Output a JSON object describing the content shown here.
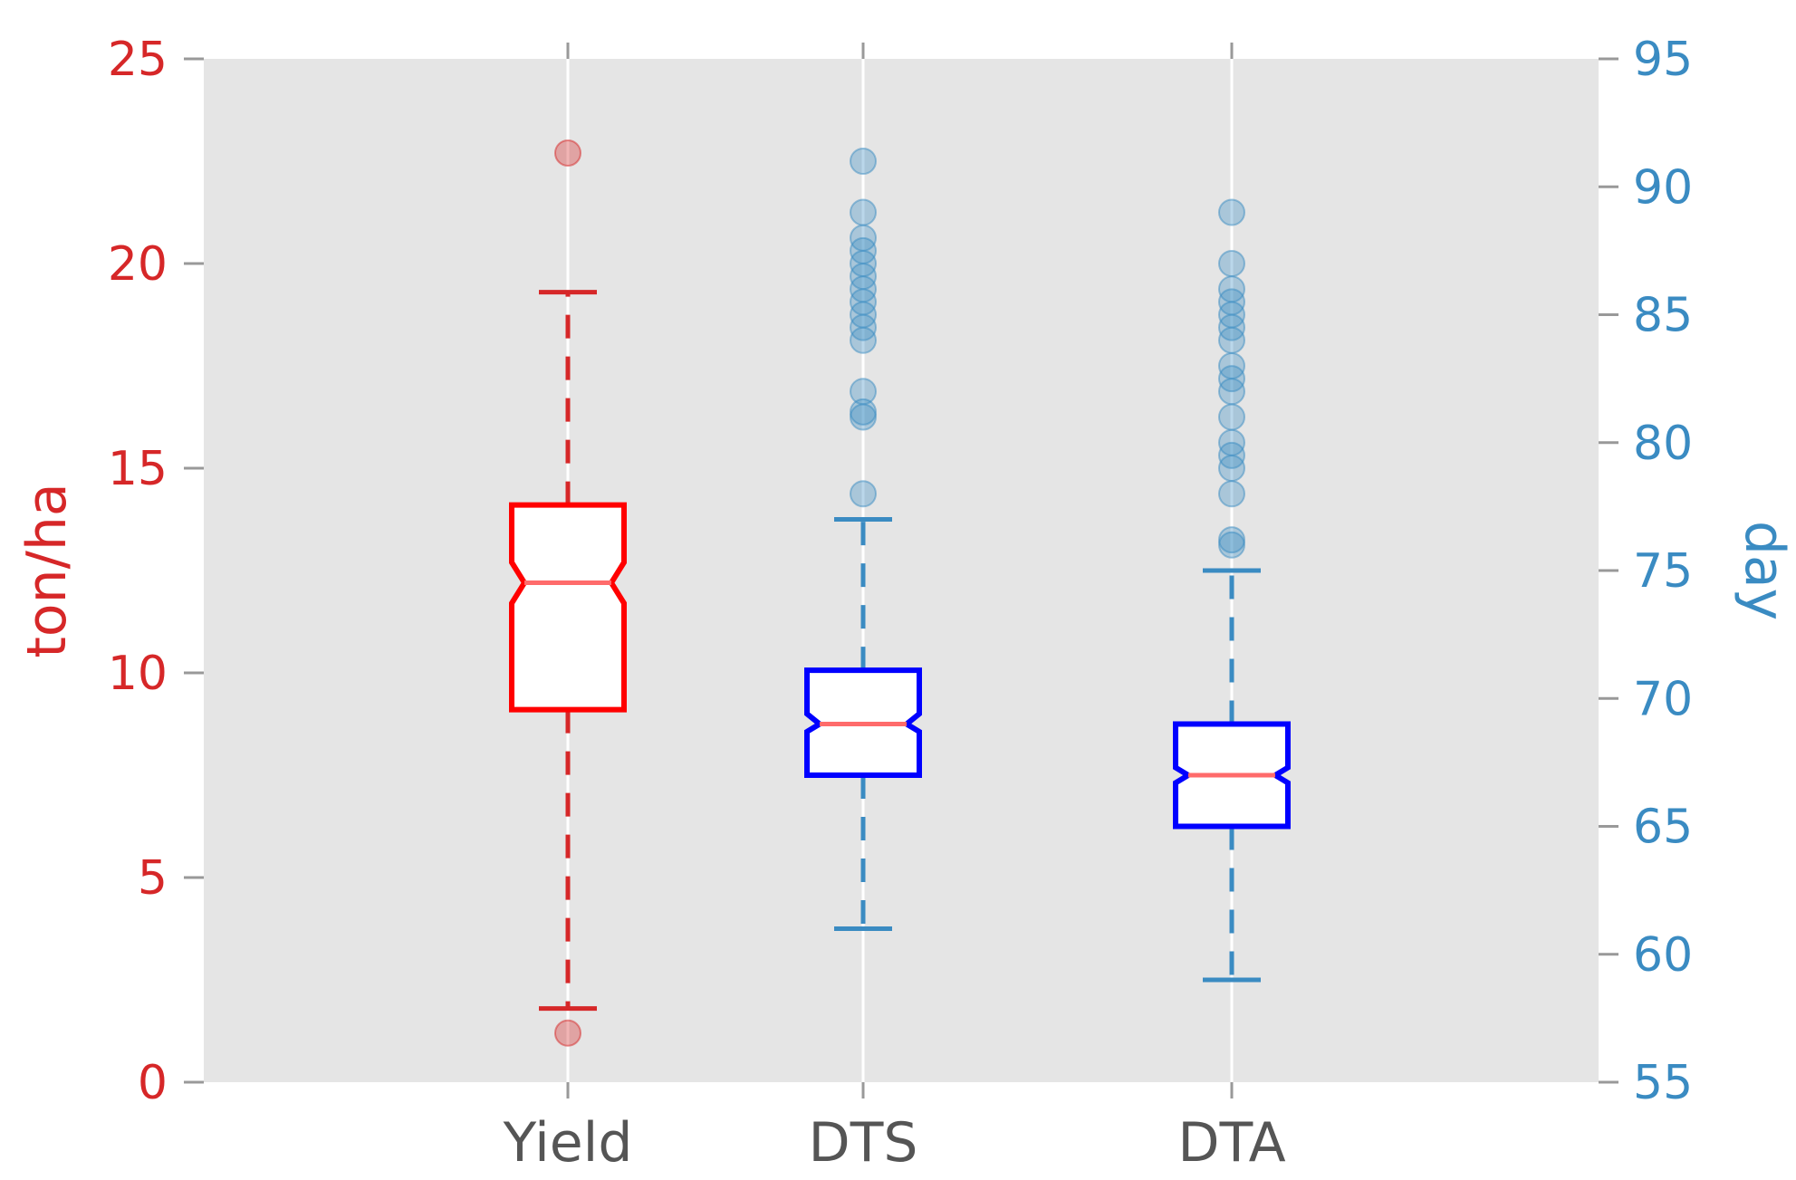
{
  "chart_data": {
    "type": "boxplot",
    "categories": [
      "Yield",
      "DTS",
      "DTA"
    ],
    "left_axis": {
      "label": "ton/ha",
      "range": [
        0,
        25
      ],
      "ticks": [
        0,
        5,
        10,
        15,
        20,
        25
      ],
      "color": "#d62728"
    },
    "right_axis": {
      "label": "day",
      "range": [
        55,
        95
      ],
      "ticks": [
        55,
        60,
        65,
        70,
        75,
        80,
        85,
        90,
        95
      ],
      "color": "#3a8bc2"
    },
    "grid": true,
    "background": "#e5e5e5",
    "boxes": [
      {
        "category": "Yield",
        "axis": "left",
        "box_color": "#ff0000",
        "whisker_color": "#d62728",
        "median_color": "#ff6b6b",
        "q1": 9.1,
        "median": 12.2,
        "q3": 14.1,
        "notch_low": 11.7,
        "notch_high": 12.7,
        "whisker_low": 1.8,
        "whisker_high": 19.3,
        "outliers": [
          22.7,
          1.2
        ]
      },
      {
        "category": "DTS",
        "axis": "right",
        "box_color": "#0000ff",
        "whisker_color": "#3a8bc2",
        "median_color": "#ff6b6b",
        "q1": 67.0,
        "median": 69.0,
        "q3": 71.1,
        "notch_low": 68.7,
        "notch_high": 69.4,
        "whisker_low": 61.0,
        "whisker_high": 77.0,
        "outliers": [
          78.0,
          81.0,
          81.2,
          82.0,
          84.0,
          84.5,
          85.0,
          85.5,
          86.0,
          86.5,
          87.0,
          87.5,
          88.0,
          89.0,
          91.0
        ]
      },
      {
        "category": "DTA",
        "axis": "right",
        "box_color": "#0000ff",
        "whisker_color": "#3a8bc2",
        "median_color": "#ff6b6b",
        "q1": 65.0,
        "median": 67.0,
        "q3": 69.0,
        "notch_low": 66.7,
        "notch_high": 67.3,
        "whisker_low": 59.0,
        "whisker_high": 75.0,
        "outliers": [
          76.0,
          76.2,
          78.0,
          79.0,
          79.5,
          80.0,
          81.0,
          82.0,
          82.5,
          83.0,
          84.0,
          84.5,
          85.0,
          85.5,
          86.0,
          87.0,
          89.0
        ]
      }
    ]
  }
}
